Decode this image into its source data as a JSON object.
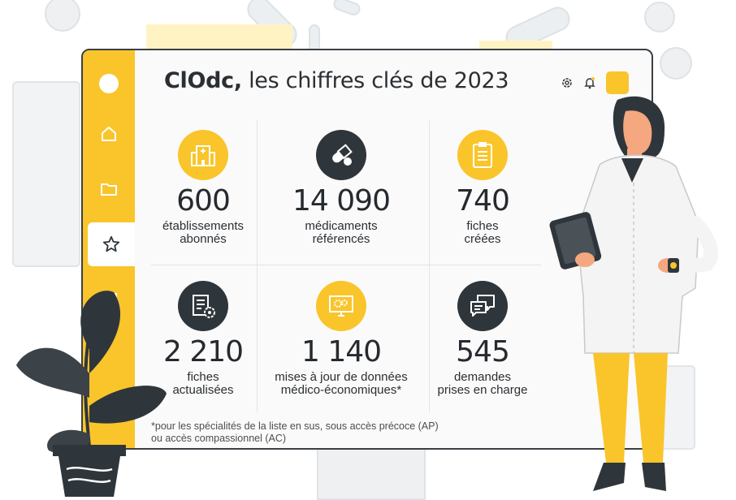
{
  "header": {
    "title_bold": "ClOdc,",
    "title_rest": " les chiffres clés de 2023"
  },
  "sidebar": {
    "items": [
      {
        "icon": "circle-icon"
      },
      {
        "icon": "home-icon"
      },
      {
        "icon": "folder-icon"
      },
      {
        "icon": "star-icon",
        "active": true
      },
      {
        "icon": "mail-icon"
      }
    ]
  },
  "toolbar": {
    "icons": [
      "gear-icon",
      "bell-icon"
    ]
  },
  "stats": [
    {
      "value": "600",
      "label_line1": "établissements",
      "label_line2": "abonnés",
      "icon": "hospital-icon",
      "color": "yellow"
    },
    {
      "value": "14 090",
      "label_line1": "médicaments",
      "label_line2": "référencés",
      "icon": "pills-icon",
      "color": "dark"
    },
    {
      "value": "740",
      "label_line1": "fiches",
      "label_line2": "créées",
      "icon": "clipboard-icon",
      "color": "yellow"
    },
    {
      "value": "2 210",
      "label_line1": "fiches",
      "label_line2": "actualisées",
      "icon": "document-gear-icon",
      "color": "dark"
    },
    {
      "value": "1 140",
      "label_line1": "mises à jour de données",
      "label_line2": "médico-économiques*",
      "icon": "monitor-gears-icon",
      "color": "yellow"
    },
    {
      "value": "545",
      "label_line1": "demandes",
      "label_line2": "prises en charge",
      "icon": "chat-bubbles-icon",
      "color": "dark"
    }
  ],
  "footnote": {
    "line1": "*pour les spécialités de la liste en sus, sous accès précoce (AP)",
    "line2": "ou accès compassionnel (AC)"
  },
  "colors": {
    "accent": "#f9c52b",
    "dark": "#2f363b",
    "text": "#2b2f33"
  }
}
